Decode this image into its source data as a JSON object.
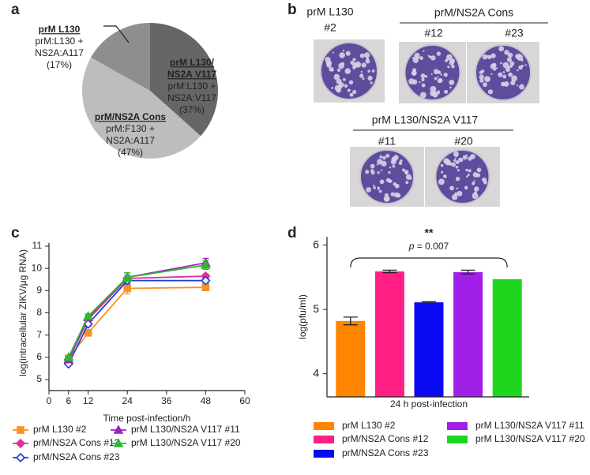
{
  "panel_labels": [
    "a",
    "b",
    "c",
    "d"
  ],
  "plaques": {
    "group1": {
      "title": "prM L130",
      "clones": [
        "#2"
      ]
    },
    "group2": {
      "title": "prM/NS2A Cons",
      "clones": [
        "#12",
        "#23"
      ]
    },
    "group3": {
      "title": "prM L130/NS2A V117",
      "clones": [
        "#11",
        "#20"
      ]
    }
  },
  "chart_data": [
    {
      "type": "pie",
      "categories": [
        [
          "prM L130/",
          "NS2A V117"
        ],
        [
          "prM/NS2A Cons"
        ],
        [
          "prM L130"
        ]
      ],
      "details": [
        [
          "prM:L130 +",
          "NS2A:V117"
        ],
        [
          "prM:F130 +",
          "NS2A:A117"
        ],
        [
          "prM:L130 +",
          "NS2A:A117"
        ]
      ],
      "values": [
        37,
        47,
        17
      ],
      "value_labels": [
        "(37%)",
        "(47%)",
        "(17%)"
      ],
      "colors": [
        "#666666",
        "#bdbdbd",
        "#8e8e8e"
      ]
    },
    {
      "type": "line",
      "x": [
        6,
        12,
        24,
        48
      ],
      "xlim": [
        0,
        60
      ],
      "xticks": [
        0,
        6,
        12,
        24,
        36,
        48,
        60
      ],
      "ylim": [
        5,
        11
      ],
      "yticks": [
        5,
        6,
        7,
        8,
        9,
        10,
        11
      ],
      "xlabel": "Time post-infection/h",
      "ylabel": "log(intracellular ZIKV/μg RNA)",
      "series": [
        {
          "name": "prM L130 #2",
          "color": "#f7931e",
          "marker": "square",
          "values": [
            5.95,
            7.1,
            9.1,
            9.15
          ],
          "errors": [
            0.05,
            0.08,
            0.25,
            0.15
          ]
        },
        {
          "name": "prM/NS2A Cons #12",
          "color": "#e0309a",
          "marker": "diamond",
          "values": [
            5.9,
            7.7,
            9.55,
            9.65
          ],
          "errors": [
            0.05,
            0.1,
            0.15,
            0.1
          ]
        },
        {
          "name": "prM/NS2A Cons #23",
          "color": "#1f3fd0",
          "marker": "open-diamond",
          "values": [
            5.7,
            7.5,
            9.45,
            9.45
          ],
          "errors": [
            0.05,
            0.1,
            0.15,
            0.1
          ]
        },
        {
          "name": "prM L130/NS2A V117 #11",
          "color": "#a020c0",
          "marker": "triangle",
          "values": [
            5.9,
            7.8,
            9.6,
            10.25
          ],
          "errors": [
            0.05,
            0.1,
            0.2,
            0.2
          ]
        },
        {
          "name": "prM L130/NS2A V117 #20",
          "color": "#2db82d",
          "marker": "triangle",
          "values": [
            6.0,
            7.85,
            9.6,
            10.15
          ],
          "errors": [
            0.05,
            0.1,
            0.2,
            0.2
          ]
        }
      ]
    },
    {
      "type": "bar",
      "categories": [
        "prM L130 #2",
        "prM/NS2A Cons #12",
        "prM/NS2A Cons #23",
        "prM L130/NS2A V117 #11",
        "prM L130/NS2A V117 #20"
      ],
      "values": [
        4.82,
        5.59,
        5.11,
        5.58,
        5.47
      ],
      "errors": [
        0.06,
        0.02,
        0.01,
        0.03,
        0
      ],
      "colors": [
        "#ff8400",
        "#ff1f85",
        "#0a0af0",
        "#a020e8",
        "#1ed61e"
      ],
      "ylim": [
        3.64,
        6.13
      ],
      "yticks": [
        4,
        5,
        6
      ],
      "xlabel": "24 h post-infection",
      "ylabel": "log(pfu/ml)",
      "annotation": {
        "stars": "**",
        "p_symbol": "p",
        "p_text": " = 0.007"
      }
    }
  ]
}
